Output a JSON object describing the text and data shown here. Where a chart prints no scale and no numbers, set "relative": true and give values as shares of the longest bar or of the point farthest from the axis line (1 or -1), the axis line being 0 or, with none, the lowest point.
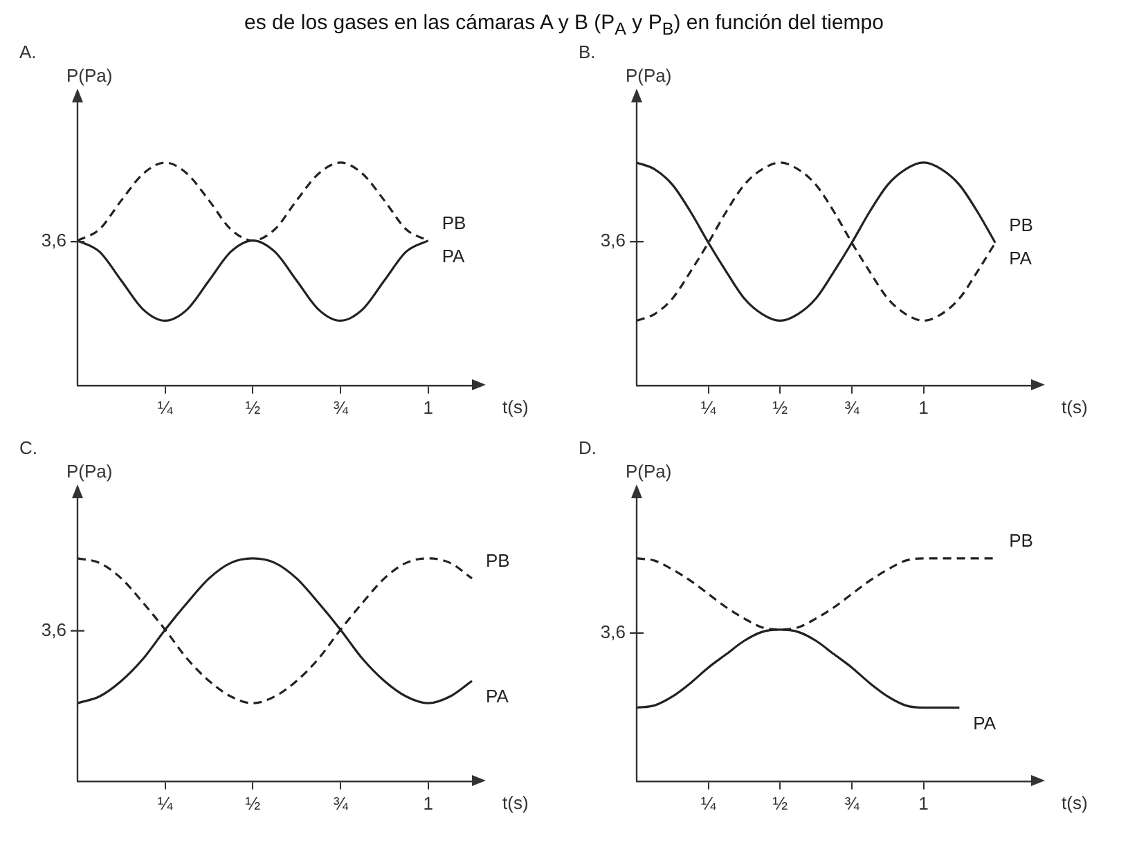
{
  "chart_data": [
    {
      "type": "line",
      "title": "A.",
      "xlabel": "t(s)",
      "ylabel": "P(Pa)",
      "relative": true,
      "marker": "none",
      "categories": [
        null,
        null,
        null,
        null,
        "¼",
        null,
        null,
        null,
        "½",
        null,
        null,
        null,
        "¾",
        null,
        null,
        null,
        "1",
        null,
        null
      ],
      "annotations": [
        "es de los gases en las cámaras A y B (P$_{A}$ y P$_{B}$) en función del tiempo",
        "3,6"
      ],
      "series": [
        {
          "name": "PB",
          "color": "#222222",
          "line_style": "dashed",
          "values": [
            0.65,
            0.7,
            0.83,
            0.95,
            1,
            0.95,
            0.83,
            0.7,
            0.65,
            0.7,
            0.83,
            0.95,
            1,
            0.95,
            0.83,
            0.7,
            0.65,
            null,
            null
          ]
        },
        {
          "name": "PA",
          "color": "#222222",
          "line_style": "solid",
          "values": [
            0.65,
            0.6,
            0.47,
            0.34,
            0.29,
            0.34,
            0.47,
            0.6,
            0.65,
            0.6,
            0.47,
            0.34,
            0.29,
            0.34,
            0.47,
            0.6,
            0.65,
            null,
            null
          ]
        }
      ]
    },
    {
      "type": "line",
      "title": "B.",
      "xlabel": "t(s)",
      "ylabel": "P(Pa)",
      "relative": true,
      "marker": "none",
      "categories": [
        null,
        null,
        null,
        null,
        "¼",
        null,
        null,
        null,
        "½",
        null,
        null,
        null,
        "¾",
        null,
        null,
        null,
        "1",
        null,
        null,
        null,
        null,
        null,
        null
      ],
      "annotations": [
        "3,6"
      ],
      "series": [
        {
          "name": "PB",
          "color": "#222222",
          "line_style": "dashed",
          "values": [
            0.29,
            0.32,
            0.39,
            0.51,
            0.64,
            0.78,
            0.9,
            0.97,
            1,
            0.97,
            0.9,
            0.78,
            0.64,
            0.51,
            0.39,
            0.32,
            0.29,
            0.32,
            0.39,
            0.51,
            0.64,
            null,
            null
          ]
        },
        {
          "name": "PA",
          "color": "#222222",
          "line_style": "solid",
          "values": [
            1,
            0.97,
            0.9,
            0.78,
            0.64,
            0.51,
            0.39,
            0.32,
            0.29,
            0.32,
            0.39,
            0.51,
            0.64,
            0.78,
            0.9,
            0.97,
            1,
            0.97,
            0.9,
            0.78,
            0.64,
            null,
            null
          ]
        }
      ]
    },
    {
      "type": "line",
      "title": "C.",
      "xlabel": "t(s)",
      "ylabel": "P(Pa)",
      "relative": true,
      "marker": "none",
      "categories": [
        null,
        null,
        null,
        null,
        "¼",
        null,
        null,
        null,
        "½",
        null,
        null,
        null,
        "¾",
        null,
        null,
        null,
        "1",
        null,
        null
      ],
      "annotations": [
        "3,6"
      ],
      "series": [
        {
          "name": "PB",
          "color": "#222222",
          "line_style": "dashed",
          "values": [
            1,
            0.98,
            0.91,
            0.8,
            0.68,
            0.55,
            0.45,
            0.38,
            0.35,
            0.38,
            0.45,
            0.55,
            0.68,
            0.8,
            0.91,
            0.98,
            1,
            0.98,
            0.91
          ]
        },
        {
          "name": "PA",
          "color": "#222222",
          "line_style": "solid",
          "values": [
            0.35,
            0.38,
            0.45,
            0.55,
            0.68,
            0.8,
            0.91,
            0.98,
            1,
            0.98,
            0.91,
            0.8,
            0.68,
            0.55,
            0.45,
            0.38,
            0.35,
            0.38,
            0.45
          ]
        }
      ]
    },
    {
      "type": "line",
      "title": "D.",
      "xlabel": "t(s)",
      "ylabel": "P(Pa)",
      "relative": true,
      "marker": "none",
      "categories": [
        null,
        null,
        null,
        null,
        "¼",
        null,
        null,
        null,
        "½",
        null,
        null,
        null,
        "¾",
        null,
        null,
        null,
        "1",
        null,
        null,
        null,
        null,
        null,
        null
      ],
      "annotations": [
        "3,6"
      ],
      "series": [
        {
          "name": "PB",
          "color": "#222222",
          "line_style": "dashed",
          "values": [
            1,
            0.99,
            0.95,
            0.9,
            0.84,
            0.78,
            0.73,
            0.69,
            0.68,
            0.69,
            0.73,
            0.78,
            0.84,
            0.9,
            0.95,
            0.99,
            1,
            1,
            1,
            1,
            1,
            null,
            null
          ]
        },
        {
          "name": "PA",
          "color": "#222222",
          "line_style": "solid",
          "values": [
            0.33,
            0.34,
            0.38,
            0.44,
            0.51,
            0.57,
            0.63,
            0.67,
            0.68,
            0.67,
            0.63,
            0.57,
            0.51,
            0.44,
            0.38,
            0.34,
            0.33,
            0.33,
            0.33,
            null,
            null,
            null,
            null
          ]
        }
      ]
    }
  ]
}
